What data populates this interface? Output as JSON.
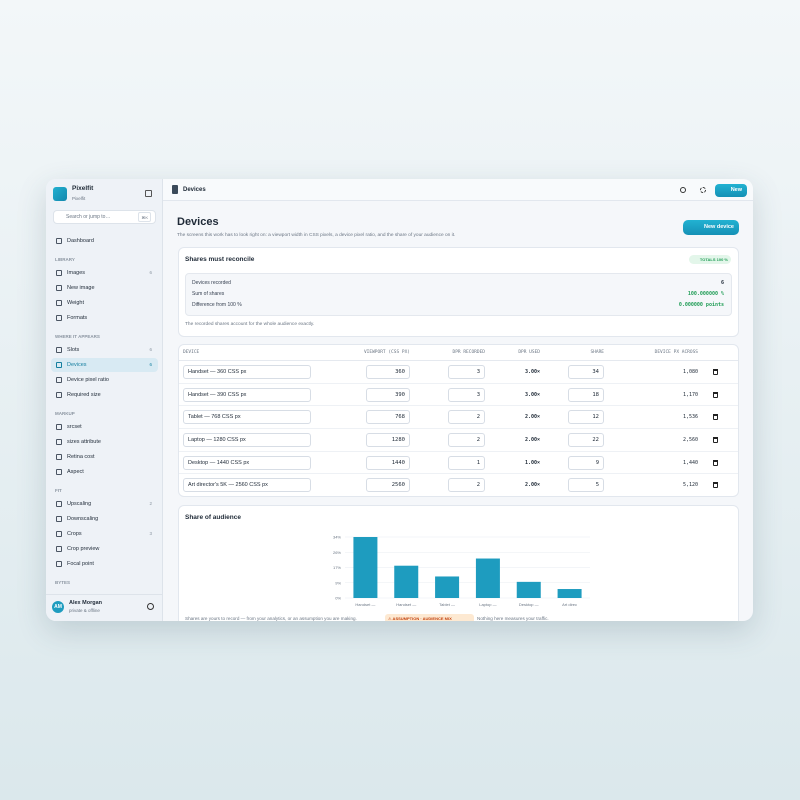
{
  "sidebar": {
    "brand": "Pixelfit",
    "brand_sub": "Pixelfit",
    "search": "Search or jump to…",
    "shortcut": "⌘K",
    "dashboard": "Dashboard",
    "sections": [
      {
        "title": "LIBRARY",
        "items": [
          {
            "label": "Images",
            "count": 6
          },
          {
            "label": "New image"
          },
          {
            "label": "Weight"
          },
          {
            "label": "Formats"
          }
        ]
      },
      {
        "title": "WHERE IT APPEARS",
        "items": [
          {
            "label": "Slots",
            "count": 6
          },
          {
            "label": "Devices",
            "count": 6,
            "active": true
          },
          {
            "label": "Device pixel ratio"
          },
          {
            "label": "Required size"
          }
        ]
      },
      {
        "title": "MARKUP",
        "items": [
          {
            "label": "srcset"
          },
          {
            "label": "sizes attribute"
          },
          {
            "label": "Retina cost"
          },
          {
            "label": "Aspect"
          }
        ]
      },
      {
        "title": "FIT",
        "items": [
          {
            "label": "Upscaling",
            "count": 2
          },
          {
            "label": "Downscaling"
          },
          {
            "label": "Crops",
            "count": 3
          },
          {
            "label": "Crop preview"
          },
          {
            "label": "Focal point"
          }
        ]
      },
      {
        "title": "BYTES",
        "items": []
      }
    ],
    "user": {
      "initials": "AM",
      "name": "Alex Morgan",
      "status": "private & offline"
    }
  },
  "topbar": {
    "title": "Devices",
    "new_button": "New"
  },
  "page": {
    "title": "Devices",
    "description": "The screens this work has to look right on: a viewport width in CSS pixels, a device pixel ratio, and the share of your audience on it.",
    "new_button": "New device"
  },
  "reconcile": {
    "title": "Shares must reconcile",
    "badge": "TOTALS 100 %",
    "rows": [
      [
        "Devices recorded",
        6
      ],
      [
        "Sum of shares",
        "100.000000 %"
      ],
      [
        "Difference from 100 %",
        "0.000000 points"
      ]
    ],
    "note": "The recorded shares account for the whole audience exactly."
  },
  "table": {
    "headers": [
      "DEVICE",
      "VIEWPORT (CSS PX)",
      "DPR RECORDED",
      "DPR USED",
      "SHARE",
      "DEVICE PX ACROSS"
    ],
    "rows": [
      [
        "Handset — 360 CSS px",
        360,
        3,
        "3.00×",
        34,
        "1,080"
      ],
      [
        "Handset — 390 CSS px",
        390,
        3,
        "3.00×",
        18,
        "1,170"
      ],
      [
        "Tablet — 768 CSS px",
        768,
        2,
        "2.00×",
        12,
        "1,536"
      ],
      [
        "Laptop — 1280 CSS px",
        1280,
        2,
        "2.00×",
        22,
        "2,560"
      ],
      [
        "Desktop — 1440 CSS px",
        1440,
        1,
        "1.00×",
        9,
        "1,440"
      ],
      [
        "Art director's 5K — 2560 CSS px",
        2560,
        2,
        "2.00×",
        5,
        "5,120"
      ]
    ]
  },
  "chart": {
    "type": "bar",
    "title": "Share of audience",
    "categories": [
      "Handset —",
      "Handset —",
      "Tablet —",
      "Laptop —",
      "Desktop —",
      "Art direc"
    ],
    "values": [
      34,
      18,
      12,
      22,
      9,
      5
    ],
    "color": "#1e9cbf",
    "ylim": [
      0,
      34
    ],
    "yticks": [
      {
        "value": 0,
        "label": "0%"
      },
      {
        "value": 8.5,
        "label": "9%"
      },
      {
        "value": 17,
        "label": "17%"
      },
      {
        "value": 25.5,
        "label": "26%"
      },
      {
        "value": 34,
        "label": "34%"
      }
    ],
    "grid": true
  },
  "footer": {
    "text": "Shares are yours to record — from your analytics, or an assumption you are making.",
    "badge": "⚠ ASSUMPTION · AUDIENCE MIX",
    "text2": "Nothing here measures your traffic."
  }
}
